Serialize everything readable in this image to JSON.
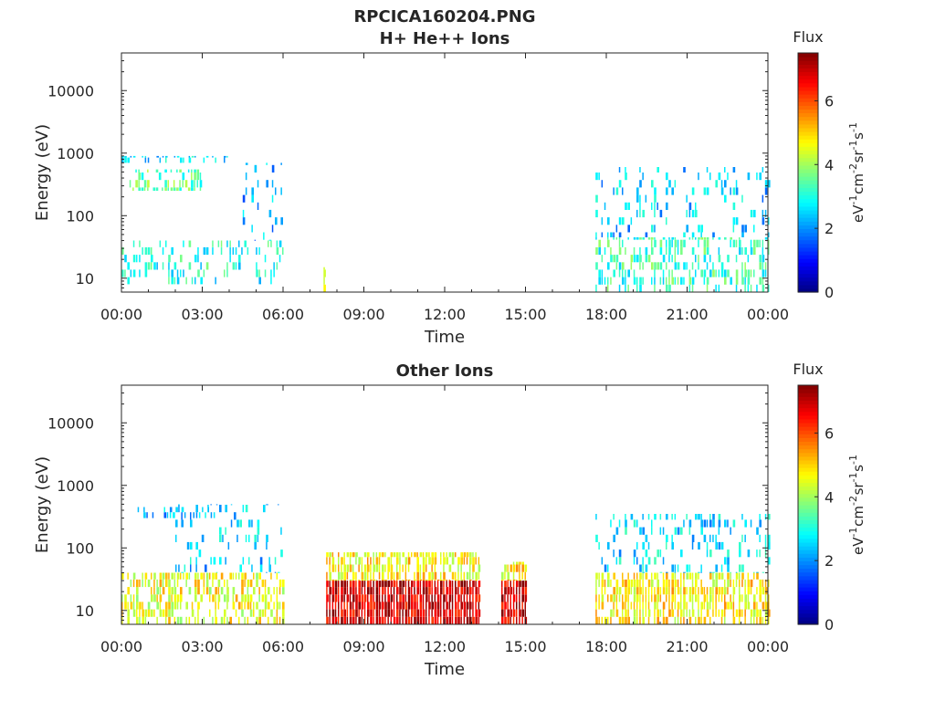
{
  "figure": {
    "filename_title": "RPCICA160204.PNG"
  },
  "chart_data": [
    {
      "type": "heatmap",
      "title": "H+ He++ Ions",
      "xlabel": "Time",
      "ylabel": "Energy (eV)",
      "x_ticks": [
        "00:00",
        "03:00",
        "06:00",
        "09:00",
        "12:00",
        "15:00",
        "18:00",
        "21:00",
        "00:00"
      ],
      "xlim_hours": [
        0,
        24
      ],
      "y_scale": "log",
      "ylim_eV": [
        6,
        40000
      ],
      "y_ticks": [
        10,
        100,
        1000,
        10000
      ],
      "y_tick_labels": [
        "10",
        "100",
        "1000",
        "10000"
      ],
      "colorbar": {
        "label": "Flux",
        "units": "eV-1cm-2sr-1s-1",
        "ticks": [
          0,
          2,
          4,
          6
        ],
        "tick_labels": [
          "0",
          "2",
          "4",
          "6"
        ],
        "range": [
          0,
          7.5
        ],
        "colormap": "jet"
      },
      "data_regions": [
        {
          "t_start": 0.0,
          "t_end": 6.0,
          "e_low": 8,
          "e_high": 40,
          "flux": 3.0,
          "density": 0.35
        },
        {
          "t_start": 0.3,
          "t_end": 3.0,
          "e_low": 250,
          "e_high": 550,
          "flux": 3.5,
          "density": 0.55
        },
        {
          "t_start": 0.0,
          "t_end": 4.0,
          "e_low": 700,
          "e_high": 900,
          "flux": 2.6,
          "density": 0.35
        },
        {
          "t_start": 4.5,
          "t_end": 6.0,
          "e_low": 40,
          "e_high": 700,
          "flux": 2.2,
          "density": 0.15
        },
        {
          "t_start": 7.5,
          "t_end": 7.55,
          "e_low": 6,
          "e_high": 15,
          "flux": 4.5,
          "density": 1.0
        },
        {
          "t_start": 17.6,
          "t_end": 24.0,
          "e_low": 6,
          "e_high": 45,
          "flux": 3.2,
          "density": 0.45
        },
        {
          "t_start": 17.6,
          "t_end": 24.0,
          "e_low": 45,
          "e_high": 600,
          "flux": 2.4,
          "density": 0.18
        }
      ]
    },
    {
      "type": "heatmap",
      "title": "Other Ions",
      "xlabel": "Time",
      "ylabel": "Energy (eV)",
      "x_ticks": [
        "00:00",
        "03:00",
        "06:00",
        "09:00",
        "12:00",
        "15:00",
        "18:00",
        "21:00",
        "00:00"
      ],
      "xlim_hours": [
        0,
        24
      ],
      "y_scale": "log",
      "ylim_eV": [
        6,
        40000
      ],
      "y_ticks": [
        10,
        100,
        1000,
        10000
      ],
      "y_tick_labels": [
        "10",
        "100",
        "1000",
        "10000"
      ],
      "colorbar": {
        "label": "Flux",
        "units": "eV-1cm-2sr-1s-1",
        "ticks": [
          0,
          2,
          4,
          6
        ],
        "tick_labels": [
          "0",
          "2",
          "4",
          "6"
        ],
        "range": [
          0,
          7.5
        ],
        "colormap": "jet"
      },
      "data_regions": [
        {
          "t_start": 0.0,
          "t_end": 6.0,
          "e_low": 6,
          "e_high": 40,
          "flux": 4.6,
          "density": 0.6
        },
        {
          "t_start": 0.6,
          "t_end": 3.5,
          "e_low": 300,
          "e_high": 450,
          "flux": 2.2,
          "density": 0.35
        },
        {
          "t_start": 2.0,
          "t_end": 6.0,
          "e_low": 40,
          "e_high": 500,
          "flux": 2.5,
          "density": 0.15
        },
        {
          "t_start": 7.6,
          "t_end": 13.3,
          "e_low": 6,
          "e_high": 30,
          "flux": 6.9,
          "density": 1.0
        },
        {
          "t_start": 7.6,
          "t_end": 13.3,
          "e_low": 30,
          "e_high": 85,
          "flux": 4.8,
          "density": 0.8
        },
        {
          "t_start": 14.1,
          "t_end": 15.0,
          "e_low": 6,
          "e_high": 30,
          "flux": 6.9,
          "density": 1.0
        },
        {
          "t_start": 14.1,
          "t_end": 15.0,
          "e_low": 30,
          "e_high": 60,
          "flux": 4.8,
          "density": 0.6
        },
        {
          "t_start": 17.6,
          "t_end": 24.0,
          "e_low": 6,
          "e_high": 40,
          "flux": 4.8,
          "density": 0.75
        },
        {
          "t_start": 17.6,
          "t_end": 24.0,
          "e_low": 40,
          "e_high": 350,
          "flux": 2.6,
          "density": 0.3
        }
      ]
    }
  ]
}
